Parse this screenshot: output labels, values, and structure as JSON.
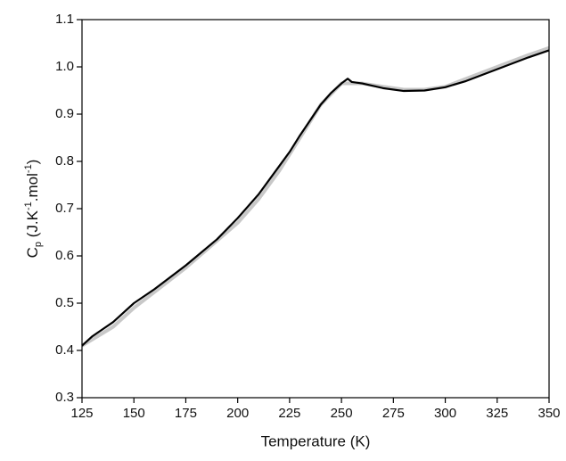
{
  "chart_data": {
    "type": "line",
    "xlabel": "Temperature (K)",
    "ylabel": [
      "C",
      "p",
      " (J.K",
      "-1",
      ".mol",
      "-1",
      ")"
    ],
    "xlim": [
      125,
      350
    ],
    "xticks": [
      125,
      150,
      175,
      200,
      225,
      250,
      275,
      300,
      325,
      350
    ],
    "ylim": [
      0.3,
      1.1
    ],
    "yticks": [
      0.3,
      0.4,
      0.5,
      0.6,
      0.7,
      0.8,
      0.9,
      {
        "value": 1,
        "label": "1.0"
      },
      1.1
    ],
    "series": [
      {
        "color": "#c8c8c8",
        "x": [
          125,
          140,
          150,
          175,
          200,
          210,
          220,
          230,
          240,
          250,
          260,
          270,
          280,
          290,
          300,
          325,
          340,
          350
        ],
        "values": [
          0.41,
          0.45,
          0.49,
          0.575,
          0.67,
          0.72,
          0.78,
          0.85,
          0.92,
          0.965,
          0.965,
          0.958,
          0.952,
          0.952,
          0.958,
          1.0,
          1.025,
          1.04
        ]
      },
      {
        "color": "#000000",
        "x": [
          125,
          130,
          140,
          150,
          160,
          175,
          190,
          200,
          210,
          220,
          225,
          230,
          240,
          245,
          250,
          253,
          255,
          260,
          270,
          280,
          290,
          300,
          310,
          325,
          340,
          350
        ],
        "values": [
          0.41,
          0.43,
          0.46,
          0.5,
          0.53,
          0.58,
          0.635,
          0.68,
          0.73,
          0.79,
          0.82,
          0.855,
          0.92,
          0.945,
          0.965,
          0.975,
          0.968,
          0.965,
          0.955,
          0.949,
          0.95,
          0.957,
          0.97,
          0.995,
          1.02,
          1.035
        ]
      }
    ]
  }
}
